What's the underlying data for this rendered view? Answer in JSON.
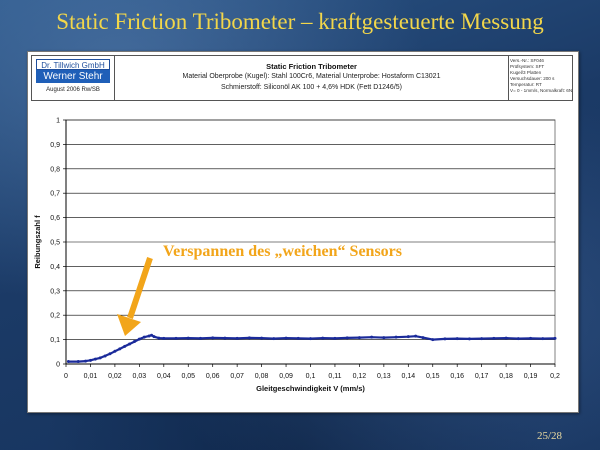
{
  "slide": {
    "title": "Static Friction Tribometer – kraftgesteuerte Messung",
    "page_number": "25/28"
  },
  "header": {
    "logo_line1": "Dr. Tillwich GmbH",
    "logo_line2": "Werner Stehr",
    "logo_date": "August 2006 Rw/SB",
    "title": "Static Friction Tribometer",
    "line1": "Material Oberprobe (Kugel): Stahl 100Cr6, Material Unterprobe: Hostaform C13021",
    "line2": "Schmierstoff: Siliconöl AK 100 + 4,6% HDK (Fett D1246/5)",
    "meta": [
      "Vers.-Nr.: SF046",
      "Prüfsystem: SFT",
      "Kugel/3 Platten",
      "Versuchsdauer: 200 s",
      "Temperatur: RT",
      "V= 0 - 1mm/s, Normalkraft: 6N"
    ]
  },
  "annotation": {
    "text": "Verspannen des „weichen“ Sensors",
    "color": "#f2a51a"
  },
  "chart_data": {
    "type": "line",
    "xlabel": "Gleitgeschwindigkeit V (mm/s)",
    "ylabel": "Reibungszahl f",
    "xlim": [
      0,
      0.2
    ],
    "ylim": [
      0,
      1
    ],
    "x_ticks": [
      "0",
      "0,01",
      "0,02",
      "0,03",
      "0,04",
      "0,05",
      "0,06",
      "0,07",
      "0,08",
      "0,09",
      "0,1",
      "0,11",
      "0,12",
      "0,13",
      "0,14",
      "0,15",
      "0,16",
      "0,17",
      "0,18",
      "0,19",
      "0,2"
    ],
    "y_ticks": [
      "0",
      "0,1",
      "0,2",
      "0,3",
      "0,4",
      "0,5",
      "0,6",
      "0,7",
      "0,8",
      "0,9",
      "1"
    ],
    "grid": true,
    "series_color": "#1a2a9a",
    "series": [
      {
        "x": [
          0.001,
          0.005,
          0.008,
          0.01,
          0.012,
          0.014,
          0.016,
          0.018,
          0.02,
          0.022,
          0.024,
          0.026,
          0.028,
          0.03,
          0.032,
          0.034,
          0.035,
          0.036,
          0.038,
          0.04,
          0.045,
          0.05,
          0.055,
          0.06,
          0.065,
          0.07,
          0.075,
          0.08,
          0.085,
          0.09,
          0.095,
          0.1,
          0.105,
          0.11,
          0.115,
          0.12,
          0.125,
          0.13,
          0.135,
          0.14,
          0.143,
          0.146,
          0.15,
          0.155,
          0.16,
          0.165,
          0.17,
          0.175,
          0.18,
          0.185,
          0.19,
          0.195,
          0.2
        ],
        "y": [
          0.01,
          0.01,
          0.012,
          0.015,
          0.02,
          0.025,
          0.033,
          0.042,
          0.052,
          0.062,
          0.072,
          0.082,
          0.092,
          0.102,
          0.11,
          0.115,
          0.118,
          0.112,
          0.106,
          0.105,
          0.105,
          0.106,
          0.105,
          0.107,
          0.106,
          0.105,
          0.107,
          0.106,
          0.104,
          0.106,
          0.105,
          0.104,
          0.106,
          0.105,
          0.107,
          0.108,
          0.11,
          0.108,
          0.11,
          0.112,
          0.114,
          0.108,
          0.1,
          0.103,
          0.104,
          0.103,
          0.104,
          0.105,
          0.106,
          0.104,
          0.105,
          0.104,
          0.105
        ]
      }
    ]
  }
}
